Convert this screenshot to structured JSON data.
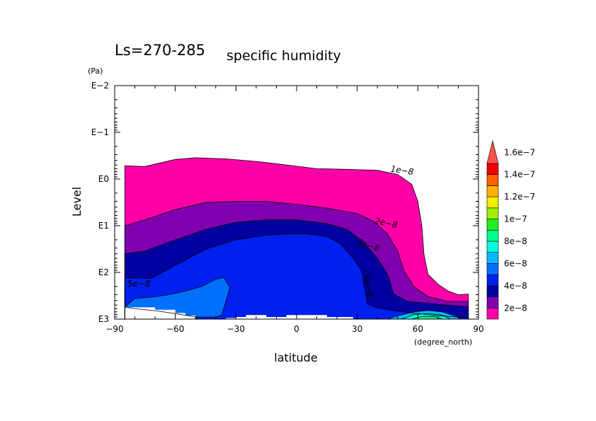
{
  "chart_data": {
    "type": "contour",
    "title": "Ls=270-285",
    "subtitle": "specific humidity",
    "xlabel": "latitude",
    "xunit": "(degree_north)",
    "ylabel": "Level",
    "yunit": "(Pa)",
    "yscale": "log",
    "yreversed": true,
    "xlim": [
      -90,
      90
    ],
    "ylim": [
      0.01,
      1000
    ],
    "x_ticks": [
      -90,
      -60,
      -30,
      0,
      30,
      60,
      90
    ],
    "x_tick_labels": [
      "−90",
      "−60",
      "−30",
      "0",
      "30",
      "60",
      "90"
    ],
    "y_ticks": [
      0.01,
      0.1,
      1,
      10,
      100,
      1000
    ],
    "y_tick_labels": [
      "E−2",
      "E−1",
      "E0",
      "E1",
      "E2",
      "E3"
    ],
    "colorbar": {
      "levels": [
        2e-08,
        4e-08,
        6e-08,
        8e-08,
        1e-07,
        1.2e-07,
        1.4e-07,
        1.6e-07
      ],
      "labels": [
        "2e−8",
        "4e−8",
        "6e−8",
        "8e−8",
        "1e−7",
        "1.2e−7",
        "1.4e−7",
        "1.6e−7"
      ],
      "colors": [
        "#ff00a8",
        "#8000b0",
        "#0000a0",
        "#0020f0",
        "#0070ff",
        "#00b8ff",
        "#00ffe0",
        "#00ff90",
        "#20f020",
        "#a0f000",
        "#f0f000",
        "#ffb000",
        "#ff6000",
        "#f00000",
        "#ff5050"
      ],
      "extend": "max"
    },
    "contour_labels": [
      "1e−8",
      "2e−8",
      "3e−8",
      "4e−8",
      "5e−8"
    ],
    "contour_levels": [
      1e-08,
      2e-08,
      3e-08,
      4e-08,
      5e-08,
      6e-08,
      7e-08,
      8e-08
    ],
    "regions": [
      {
        "level": 1e-08,
        "boundary": [
          [
            -85,
            1000
          ],
          [
            -85,
            0.52
          ],
          [
            -75,
            0.54
          ],
          [
            -60,
            0.38
          ],
          [
            -50,
            0.35
          ],
          [
            -35,
            0.37
          ],
          [
            -20,
            0.42
          ],
          [
            -5,
            0.5
          ],
          [
            10,
            0.6
          ],
          [
            25,
            0.62
          ],
          [
            40,
            0.65
          ],
          [
            50,
            0.8
          ],
          [
            57,
            1.3
          ],
          [
            60,
            3
          ],
          [
            62,
            10
          ],
          [
            63,
            40
          ],
          [
            65,
            110
          ],
          [
            70,
            180
          ],
          [
            75,
            250
          ],
          [
            80,
            300
          ],
          [
            85,
            290
          ],
          [
            85,
            1000
          ]
        ]
      },
      {
        "level": 2e-08,
        "boundary": [
          [
            -85,
            1000
          ],
          [
            -85,
            10
          ],
          [
            -75,
            7.5
          ],
          [
            -60,
            4.5
          ],
          [
            -45,
            3.2
          ],
          [
            -30,
            3
          ],
          [
            -15,
            3
          ],
          [
            0,
            3.5
          ],
          [
            15,
            4.2
          ],
          [
            30,
            5.5
          ],
          [
            38,
            8
          ],
          [
            45,
            15
          ],
          [
            50,
            35
          ],
          [
            53,
            90
          ],
          [
            58,
            200
          ],
          [
            65,
            330
          ],
          [
            75,
            420
          ],
          [
            85,
            420
          ],
          [
            85,
            1000
          ]
        ]
      },
      {
        "level": 3e-08,
        "boundary": [
          [
            -85,
            1000
          ],
          [
            -85,
            40
          ],
          [
            -75,
            35
          ],
          [
            -60,
            20
          ],
          [
            -45,
            12
          ],
          [
            -30,
            8.5
          ],
          [
            -15,
            7.5
          ],
          [
            0,
            7.5
          ],
          [
            15,
            9
          ],
          [
            25,
            12
          ],
          [
            33,
            22
          ],
          [
            40,
            50
          ],
          [
            45,
            110
          ],
          [
            48,
            290
          ],
          [
            55,
            420
          ],
          [
            70,
            480
          ],
          [
            85,
            550
          ],
          [
            85,
            1000
          ]
        ]
      },
      {
        "level": 4e-08,
        "boundary": [
          [
            -85,
            1000
          ],
          [
            -85,
            130
          ],
          [
            -72,
            135
          ],
          [
            -60,
            70
          ],
          [
            -45,
            32
          ],
          [
            -30,
            20
          ],
          [
            -15,
            16
          ],
          [
            -5,
            15
          ],
          [
            5,
            15
          ],
          [
            15,
            17
          ],
          [
            22,
            25
          ],
          [
            28,
            50
          ],
          [
            32,
            90
          ],
          [
            33,
            150
          ],
          [
            34,
            250
          ],
          [
            35,
            470
          ],
          [
            40,
            580
          ],
          [
            50,
            680
          ],
          [
            60,
            760
          ],
          [
            70,
            850
          ],
          [
            80,
            900
          ],
          [
            85,
            950
          ],
          [
            85,
            1000
          ]
        ]
      },
      {
        "level": 5e-08,
        "boundary": [
          [
            -85,
            550
          ],
          [
            -80,
            360
          ],
          [
            -72,
            340
          ],
          [
            -63,
            300
          ],
          [
            -55,
            250
          ],
          [
            -47,
            200
          ],
          [
            -40,
            140
          ],
          [
            -36,
            130
          ],
          [
            -33,
            210
          ],
          [
            -35,
            420
          ],
          [
            -37,
            820
          ],
          [
            -40,
            900
          ],
          [
            -50,
            900
          ],
          [
            -60,
            760
          ],
          [
            -70,
            660
          ],
          [
            -80,
            600
          ],
          [
            -85,
            550
          ]
        ]
      },
      {
        "level": 6e-08,
        "boundary": [
          [
            45,
            1000
          ],
          [
            50,
            850
          ],
          [
            58,
            700
          ],
          [
            65,
            650
          ],
          [
            72,
            700
          ],
          [
            78,
            850
          ],
          [
            82,
            1000
          ]
        ]
      },
      {
        "level": 7e-08,
        "boundary": [
          [
            52,
            1000
          ],
          [
            58,
            800
          ],
          [
            65,
            760
          ],
          [
            72,
            820
          ],
          [
            76,
            1000
          ]
        ]
      },
      {
        "level": 8e-08,
        "boundary": [
          [
            57,
            1000
          ],
          [
            62,
            880
          ],
          [
            68,
            880
          ],
          [
            72,
            1000
          ]
        ]
      }
    ],
    "mask_top": [
      [
        -85,
        0.52
      ],
      [
        -75,
        0.54
      ],
      [
        -60,
        0.38
      ],
      [
        -50,
        0.35
      ],
      [
        -35,
        0.37
      ],
      [
        -20,
        0.42
      ],
      [
        -5,
        0.5
      ],
      [
        10,
        0.6
      ],
      [
        25,
        0.62
      ],
      [
        40,
        0.65
      ],
      [
        50,
        0.8
      ],
      [
        57,
        1.3
      ],
      [
        60,
        3
      ],
      [
        62,
        10
      ],
      [
        63,
        40
      ],
      [
        65,
        110
      ],
      [
        70,
        180
      ],
      [
        75,
        250
      ],
      [
        80,
        300
      ],
      [
        85,
        290
      ],
      [
        90,
        290
      ]
    ],
    "mask_bottom": [
      [
        -85,
        560
      ],
      [
        -70,
        560
      ],
      [
        -70,
        630
      ],
      [
        -60,
        630
      ],
      [
        -60,
        740
      ],
      [
        -55,
        740
      ],
      [
        -55,
        840
      ],
      [
        -50,
        840
      ],
      [
        -50,
        1000
      ],
      [
        -35,
        1000
      ],
      [
        -35,
        950
      ],
      [
        -30,
        950
      ],
      [
        -30,
        900
      ],
      [
        -25,
        900
      ],
      [
        -25,
        820
      ],
      [
        -15,
        820
      ],
      [
        -15,
        900
      ],
      [
        -5,
        900
      ],
      [
        -5,
        820
      ],
      [
        15,
        820
      ],
      [
        15,
        900
      ],
      [
        28,
        900
      ],
      [
        28,
        1000
      ],
      [
        90,
        1000
      ]
    ]
  }
}
